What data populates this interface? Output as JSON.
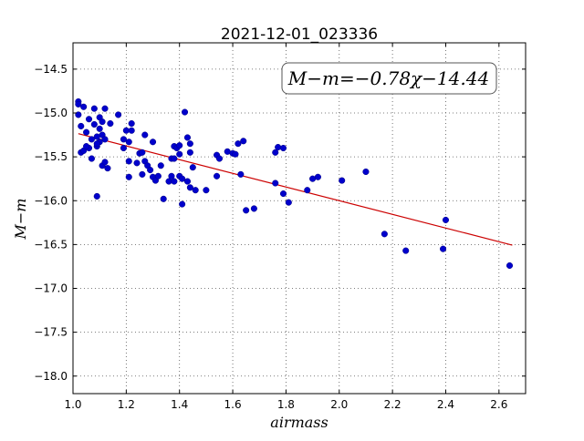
{
  "chart_data": {
    "type": "scatter",
    "title": "2021-12-01_023336",
    "xlabel": "airmass",
    "ylabel": "M−m",
    "annotation": "M−m=−0.78χ−14.44",
    "annotation_location": "top-right",
    "xlim": [
      1.0,
      2.7
    ],
    "ylim": [
      -18.2,
      -14.2
    ],
    "y_inverted": true,
    "grid": true,
    "x_ticks": [
      1.0,
      1.2,
      1.4,
      1.6,
      1.8,
      2.0,
      2.2,
      2.4,
      2.6
    ],
    "x_tick_labels": [
      "1.0",
      "1.2",
      "1.4",
      "1.6",
      "1.8",
      "2.0",
      "2.2",
      "2.4",
      "2.6"
    ],
    "y_ticks": [
      -14.5,
      -15.0,
      -15.5,
      -16.0,
      -16.5,
      -17.0,
      -17.5,
      -18.0
    ],
    "y_tick_labels": [
      "−14.5",
      "−15.0",
      "−15.5",
      "−16.0",
      "−16.5",
      "−17.0",
      "−17.5",
      "−18.0"
    ],
    "marker_color": "#0000cc",
    "fit_color": "#cc0000",
    "fit": {
      "slope": -0.78,
      "intercept": -14.44,
      "x_range": [
        1.02,
        2.65
      ]
    },
    "points": [
      [
        1.02,
        -14.87
      ],
      [
        1.02,
        -14.9
      ],
      [
        1.04,
        -14.93
      ],
      [
        1.02,
        -15.02
      ],
      [
        1.03,
        -15.15
      ],
      [
        1.05,
        -15.22
      ],
      [
        1.06,
        -15.07
      ],
      [
        1.08,
        -14.95
      ],
      [
        1.1,
        -15.05
      ],
      [
        1.12,
        -14.95
      ],
      [
        1.08,
        -15.13
      ],
      [
        1.1,
        -15.18
      ],
      [
        1.11,
        -15.1
      ],
      [
        1.11,
        -15.25
      ],
      [
        1.12,
        -15.3
      ],
      [
        1.1,
        -15.33
      ],
      [
        1.09,
        -15.27
      ],
      [
        1.07,
        -15.3
      ],
      [
        1.14,
        -15.12
      ],
      [
        1.17,
        -15.02
      ],
      [
        1.03,
        -15.45
      ],
      [
        1.04,
        -15.43
      ],
      [
        1.06,
        -15.4
      ],
      [
        1.05,
        -15.38
      ],
      [
        1.07,
        -15.52
      ],
      [
        1.09,
        -15.38
      ],
      [
        1.09,
        -15.35
      ],
      [
        1.09,
        -15.95
      ],
      [
        1.11,
        -15.6
      ],
      [
        1.12,
        -15.56
      ],
      [
        1.13,
        -15.63
      ],
      [
        1.19,
        -15.3
      ],
      [
        1.2,
        -15.2
      ],
      [
        1.21,
        -15.33
      ],
      [
        1.22,
        -15.2
      ],
      [
        1.22,
        -15.12
      ],
      [
        1.19,
        -15.4
      ],
      [
        1.21,
        -15.55
      ],
      [
        1.21,
        -15.73
      ],
      [
        1.24,
        -15.57
      ],
      [
        1.25,
        -15.46
      ],
      [
        1.26,
        -15.45
      ],
      [
        1.27,
        -15.25
      ],
      [
        1.26,
        -15.7
      ],
      [
        1.27,
        -15.55
      ],
      [
        1.28,
        -15.6
      ],
      [
        1.29,
        -15.65
      ],
      [
        1.3,
        -15.73
      ],
      [
        1.3,
        -15.33
      ],
      [
        1.31,
        -15.77
      ],
      [
        1.32,
        -15.72
      ],
      [
        1.33,
        -15.6
      ],
      [
        1.34,
        -15.98
      ],
      [
        1.36,
        -15.78
      ],
      [
        1.37,
        -15.72
      ],
      [
        1.37,
        -15.52
      ],
      [
        1.38,
        -15.52
      ],
      [
        1.38,
        -15.38
      ],
      [
        1.38,
        -15.78
      ],
      [
        1.39,
        -15.4
      ],
      [
        1.4,
        -15.47
      ],
      [
        1.4,
        -15.72
      ],
      [
        1.4,
        -15.37
      ],
      [
        1.41,
        -16.04
      ],
      [
        1.41,
        -15.75
      ],
      [
        1.42,
        -14.99
      ],
      [
        1.43,
        -15.28
      ],
      [
        1.43,
        -15.78
      ],
      [
        1.44,
        -15.35
      ],
      [
        1.44,
        -15.45
      ],
      [
        1.44,
        -15.85
      ],
      [
        1.45,
        -15.62
      ],
      [
        1.46,
        -15.88
      ],
      [
        1.5,
        -15.88
      ],
      [
        1.54,
        -15.72
      ],
      [
        1.54,
        -15.48
      ],
      [
        1.55,
        -15.52
      ],
      [
        1.58,
        -15.44
      ],
      [
        1.6,
        -15.46
      ],
      [
        1.61,
        -15.47
      ],
      [
        1.62,
        -15.35
      ],
      [
        1.63,
        -15.7
      ],
      [
        1.64,
        -15.32
      ],
      [
        1.65,
        -16.11
      ],
      [
        1.68,
        -16.09
      ],
      [
        1.76,
        -15.45
      ],
      [
        1.76,
        -15.8
      ],
      [
        1.77,
        -15.39
      ],
      [
        1.79,
        -15.4
      ],
      [
        1.79,
        -15.92
      ],
      [
        1.81,
        -16.02
      ],
      [
        1.88,
        -15.88
      ],
      [
        1.9,
        -15.75
      ],
      [
        1.92,
        -15.73
      ],
      [
        2.01,
        -15.77
      ],
      [
        2.1,
        -15.67
      ],
      [
        2.17,
        -16.38
      ],
      [
        2.25,
        -16.57
      ],
      [
        2.39,
        -16.55
      ],
      [
        2.4,
        -16.22
      ],
      [
        2.64,
        -16.74
      ]
    ]
  }
}
